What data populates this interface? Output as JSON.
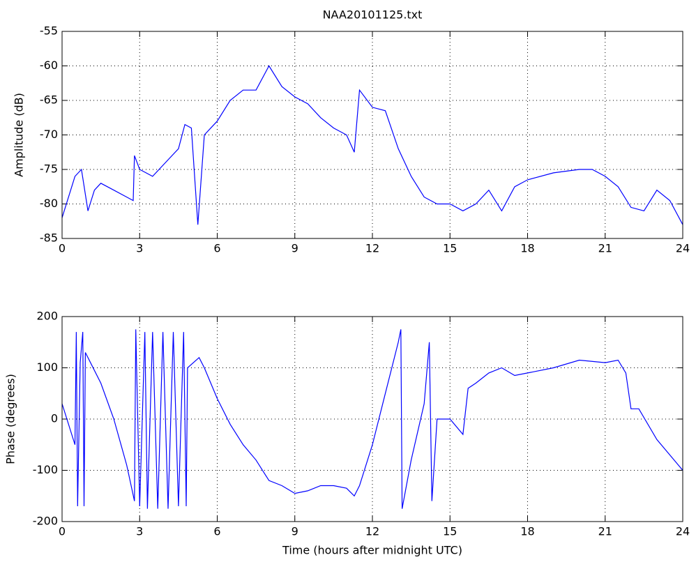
{
  "chart_data": [
    {
      "type": "line",
      "title": "NAA20101125.txt",
      "ylabel": "Amplitude (dB)",
      "x": [
        0,
        0.5,
        0.75,
        1.0,
        1.25,
        1.5,
        2.0,
        2.5,
        2.75,
        2.8,
        3.0,
        3.5,
        4.0,
        4.5,
        4.75,
        5.0,
        5.25,
        5.5,
        6.0,
        6.5,
        7.0,
        7.5,
        8.0,
        8.5,
        9.0,
        9.5,
        10.0,
        10.5,
        11.0,
        11.3,
        11.5,
        12.0,
        12.5,
        13.0,
        13.5,
        14.0,
        14.5,
        15.0,
        15.5,
        16.0,
        16.5,
        17.0,
        17.5,
        18.0,
        19.0,
        20.0,
        20.5,
        21.0,
        21.5,
        22.0,
        22.5,
        23.0,
        23.5,
        24.0
      ],
      "series": [
        {
          "name": "Amplitude",
          "color": "#0000ff",
          "values": [
            -82,
            -76,
            -75,
            -81,
            -78,
            -77,
            -78,
            -79,
            -79.5,
            -73,
            -75,
            -76,
            -74,
            -72,
            -68.5,
            -69,
            -83,
            -70,
            -68,
            -65,
            -63.5,
            -63.5,
            -60,
            -63,
            -64.5,
            -65.5,
            -67.5,
            -69,
            -70,
            -72.5,
            -63.5,
            -66,
            -66.5,
            -72,
            -76,
            -79,
            -80,
            -80,
            -81,
            -80,
            -78,
            -81,
            -77.5,
            -76.5,
            -75.5,
            -75,
            -75,
            -76,
            -77.5,
            -80.5,
            -81,
            -78,
            -79.5,
            -83
          ]
        }
      ],
      "xlim": [
        0,
        24
      ],
      "xticks": [
        0,
        3,
        6,
        9,
        12,
        15,
        18,
        21,
        24
      ],
      "ylim": [
        -85,
        -55
      ],
      "yticks": [
        -85,
        -80,
        -75,
        -70,
        -65,
        -60,
        -55
      ],
      "grid": true
    },
    {
      "type": "line",
      "xlabel": "Time (hours after midnight UTC)",
      "ylabel": "Phase (degrees)",
      "x": [
        0,
        0.5,
        0.55,
        0.6,
        0.7,
        0.8,
        0.85,
        0.9,
        1.5,
        2.0,
        2.5,
        2.8,
        2.85,
        3.0,
        3.2,
        3.3,
        3.5,
        3.7,
        3.9,
        4.1,
        4.3,
        4.5,
        4.7,
        4.8,
        4.85,
        5.3,
        5.5,
        6.0,
        6.5,
        7.0,
        7.5,
        8.0,
        8.5,
        9.0,
        9.5,
        10.0,
        10.5,
        11.0,
        11.3,
        11.5,
        12.0,
        12.5,
        13.0,
        13.1,
        13.15,
        13.5,
        14.0,
        14.2,
        14.3,
        14.5,
        15.0,
        15.5,
        15.7,
        16.0,
        16.5,
        17.0,
        17.5,
        18.0,
        19.0,
        20.0,
        21.0,
        21.5,
        21.8,
        22.0,
        22.3,
        23.0,
        23.5,
        24.0
      ],
      "series": [
        {
          "name": "Phase",
          "color": "#0000ff",
          "values": [
            30,
            -50,
            170,
            -170,
            110,
            170,
            -170,
            130,
            70,
            0,
            -90,
            -160,
            175,
            -170,
            170,
            -175,
            170,
            -175,
            170,
            -175,
            170,
            -170,
            170,
            -170,
            100,
            120,
            100,
            40,
            -10,
            -50,
            -80,
            -120,
            -130,
            -145,
            -140,
            -130,
            -130,
            -135,
            -150,
            -130,
            -50,
            50,
            150,
            175,
            -175,
            -80,
            30,
            150,
            -160,
            0,
            0,
            -30,
            60,
            70,
            90,
            100,
            85,
            90,
            100,
            115,
            110,
            115,
            90,
            20,
            20,
            -40,
            -70,
            -100
          ]
        }
      ],
      "xlim": [
        0,
        24
      ],
      "xticks": [
        0,
        3,
        6,
        9,
        12,
        15,
        18,
        21,
        24
      ],
      "ylim": [
        -200,
        200
      ],
      "yticks": [
        -200,
        -100,
        0,
        100,
        200
      ],
      "grid": true
    }
  ]
}
